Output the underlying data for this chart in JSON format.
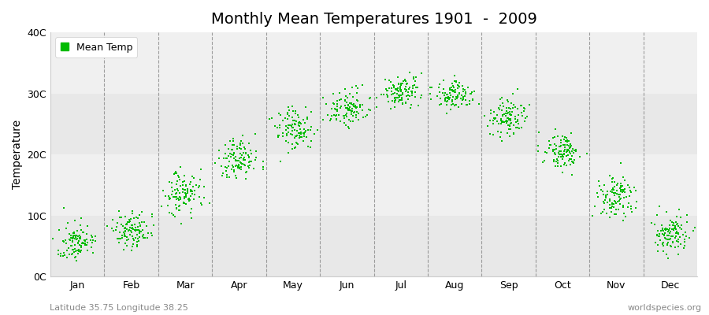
{
  "title": "Monthly Mean Temperatures 1901  -  2009",
  "ylabel": "Temperature",
  "dot_color": "#00bb00",
  "figure_bg": "#ffffff",
  "plot_bg_light": "#f0f0f0",
  "plot_bg_dark": "#e8e8e8",
  "ylim": [
    0,
    40
  ],
  "ytick_labels": [
    "0C",
    "10C",
    "20C",
    "30C",
    "40C"
  ],
  "ytick_values": [
    0,
    10,
    20,
    30,
    40
  ],
  "months": [
    "Jan",
    "Feb",
    "Mar",
    "Apr",
    "May",
    "Jun",
    "Jul",
    "Aug",
    "Sep",
    "Oct",
    "Nov",
    "Dec"
  ],
  "monthly_mean": [
    5.5,
    7.5,
    13.5,
    19.0,
    24.0,
    27.5,
    30.0,
    29.5,
    26.0,
    20.5,
    13.0,
    7.0
  ],
  "monthly_std": [
    1.5,
    1.5,
    1.8,
    1.8,
    1.8,
    1.5,
    1.3,
    1.3,
    1.5,
    1.5,
    1.8,
    1.5
  ],
  "n_years": 109,
  "subtitle_left": "Latitude 35.75 Longitude 38.25",
  "subtitle_right": "worldspecies.org",
  "legend_label": "Mean Temp",
  "title_fontsize": 14,
  "axis_label_fontsize": 10,
  "tick_fontsize": 9,
  "subtitle_fontsize": 8,
  "dot_size": 3
}
